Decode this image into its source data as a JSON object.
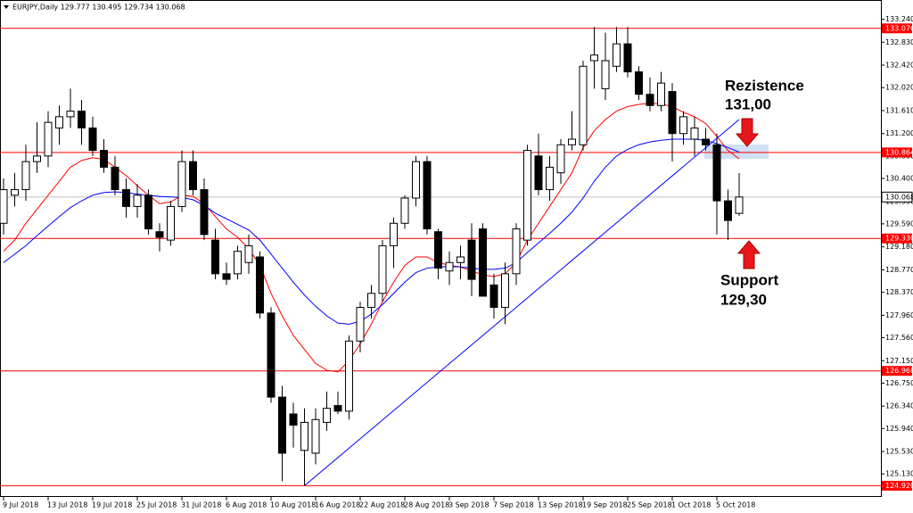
{
  "chart_data": {
    "type": "candlestick",
    "title": "EURJPY,Daily  129.777 130.495 129.734 130.068",
    "categories": [
      "9 Jul 2018",
      null,
      null,
      null,
      "13 Jul 2018",
      null,
      null,
      null,
      "19 Jul 2018",
      null,
      null,
      null,
      "25 Jul 2018",
      null,
      null,
      null,
      "31 Jul 2018",
      null,
      null,
      null,
      "6 Aug 2018",
      null,
      null,
      null,
      "10 Aug 2018",
      null,
      null,
      null,
      "16 Aug 2018",
      null,
      null,
      null,
      "22 Aug 2018",
      null,
      null,
      null,
      "28 Aug 2018",
      null,
      null,
      null,
      "3 Sep 2018",
      null,
      null,
      null,
      "7 Sep 2018",
      null,
      null,
      null,
      "13 Sep 2018",
      null,
      null,
      null,
      "19 Sep 2018",
      null,
      null,
      null,
      "25 Sep 2018",
      null,
      null,
      null,
      "1 Oct 2018",
      null,
      null,
      null,
      "5 Oct 2018",
      null,
      null
    ],
    "open": [
      129.6,
      130.1,
      130.2,
      130.7,
      130.8,
      131.3,
      131.5,
      131.6,
      131.3,
      130.9,
      130.6,
      130.2,
      129.9,
      130.1,
      129.45,
      129.3,
      129.9,
      130.7,
      130.2,
      129.3,
      128.7,
      128.7,
      128.9,
      129.0,
      128.0,
      126.5,
      126.2,
      125.55,
      125.5,
      126.05,
      126.35,
      126.25,
      127.5,
      128.1,
      128.35,
      129.2,
      129.6,
      130.05,
      130.7,
      129.45,
      128.75,
      128.9,
      129.3,
      129.5,
      128.5,
      128.1,
      128.7,
      129.3,
      130.8,
      130.2,
      130.5,
      131.0,
      131.0,
      132.5,
      132.0,
      132.4,
      132.8,
      132.3,
      131.9,
      131.7,
      131.95,
      131.2,
      131.1,
      131.1,
      131.0,
      130.0,
      129.777
    ],
    "high": [
      130.4,
      130.5,
      131.0,
      131.4,
      131.6,
      131.7,
      132.0,
      131.8,
      131.5,
      131.1,
      130.8,
      130.4,
      130.3,
      130.2,
      129.6,
      130.0,
      130.9,
      130.9,
      130.4,
      129.5,
      128.9,
      129.2,
      129.4,
      129.1,
      128.1,
      126.7,
      126.4,
      126.3,
      126.3,
      126.6,
      126.6,
      127.6,
      128.2,
      128.5,
      129.3,
      129.7,
      130.1,
      130.8,
      130.8,
      129.5,
      129.1,
      129.2,
      129.6,
      129.6,
      128.7,
      128.9,
      129.6,
      131.0,
      131.2,
      130.8,
      131.1,
      131.6,
      132.5,
      133.1,
      133.0,
      133.1,
      133.1,
      132.4,
      132.2,
      132.3,
      132.1,
      131.6,
      131.5,
      131.3,
      131.2,
      130.2,
      130.495
    ],
    "low": [
      129.4,
      129.9,
      130.0,
      130.5,
      130.6,
      131.0,
      131.3,
      131.0,
      130.8,
      130.5,
      130.1,
      129.7,
      129.7,
      129.4,
      129.1,
      129.2,
      129.8,
      130.1,
      129.3,
      128.6,
      128.5,
      128.6,
      128.7,
      127.9,
      126.4,
      125.0,
      125.6,
      124.92,
      125.3,
      125.9,
      126.2,
      126.1,
      127.3,
      127.9,
      128.2,
      128.8,
      129.5,
      129.9,
      129.4,
      128.6,
      128.5,
      128.6,
      128.3,
      128.3,
      127.9,
      127.8,
      128.5,
      129.2,
      130.1,
      130.0,
      130.3,
      130.9,
      130.9,
      132.0,
      131.8,
      132.3,
      132.2,
      131.8,
      131.6,
      131.6,
      130.7,
      131.0,
      130.8,
      130.9,
      129.4,
      129.3,
      129.734
    ],
    "close": [
      130.2,
      130.2,
      130.7,
      130.8,
      131.4,
      131.5,
      131.6,
      131.3,
      130.9,
      130.6,
      130.2,
      129.9,
      130.1,
      129.5,
      129.35,
      129.9,
      130.7,
      130.2,
      129.4,
      128.7,
      128.6,
      129.1,
      129.2,
      128.0,
      126.5,
      125.5,
      126.0,
      126.05,
      126.1,
      126.3,
      126.25,
      127.5,
      128.1,
      128.35,
      129.2,
      129.6,
      130.05,
      130.7,
      129.5,
      128.8,
      128.9,
      129.0,
      128.6,
      128.3,
      128.1,
      128.7,
      129.5,
      130.9,
      130.2,
      130.6,
      131.0,
      131.1,
      132.4,
      132.6,
      132.5,
      132.8,
      132.3,
      131.9,
      131.7,
      132.1,
      131.2,
      131.5,
      131.3,
      131.0,
      130.0,
      129.65,
      130.068
    ],
    "bull_color": "#ffffff",
    "bear_color": "#000000",
    "moving_averages": [
      {
        "color": "#ff0000",
        "values": [
          129.1,
          129.3,
          129.6,
          129.85,
          130.1,
          130.35,
          130.6,
          130.72,
          130.77,
          130.74,
          130.6,
          130.45,
          130.27,
          130.1,
          129.95,
          129.98,
          130.1,
          130.08,
          129.95,
          129.72,
          129.5,
          129.35,
          129.15,
          128.85,
          128.35,
          127.95,
          127.6,
          127.35,
          127.1,
          126.98,
          126.95,
          127.15,
          127.45,
          127.8,
          128.2,
          128.55,
          128.85,
          129.0,
          129.0,
          128.9,
          128.85,
          128.82,
          128.75,
          128.68,
          128.65,
          128.7,
          128.9,
          129.3,
          129.6,
          129.9,
          130.2,
          130.5,
          130.95,
          131.25,
          131.45,
          131.6,
          131.68,
          131.72,
          131.74,
          131.73,
          131.68,
          131.58,
          131.5,
          131.38,
          131.15,
          130.9,
          130.75
        ]
      },
      {
        "color": "#0000ff",
        "values": [
          128.9,
          129.05,
          129.2,
          129.38,
          129.55,
          129.72,
          129.88,
          130.0,
          130.1,
          130.15,
          130.16,
          130.15,
          130.12,
          130.1,
          130.08,
          130.07,
          130.06,
          130.02,
          129.92,
          129.78,
          129.68,
          129.58,
          129.48,
          129.3,
          129.05,
          128.8,
          128.55,
          128.32,
          128.12,
          127.95,
          127.82,
          127.8,
          127.85,
          127.98,
          128.15,
          128.35,
          128.55,
          128.72,
          128.8,
          128.82,
          128.83,
          128.82,
          128.8,
          128.78,
          128.78,
          128.8,
          128.9,
          129.08,
          129.25,
          129.42,
          129.6,
          129.8,
          130.05,
          130.35,
          130.6,
          130.8,
          130.92,
          131.0,
          131.05,
          131.08,
          131.1,
          131.1,
          131.1,
          131.08,
          131.02,
          130.95,
          130.87
        ]
      }
    ],
    "trendline": {
      "color": "#0000ff",
      "x": [
        27,
        66
      ],
      "values": [
        124.92,
        131.45
      ]
    },
    "levels": [
      133.076,
      130.864,
      {
        "value": 129.33,
        "label": "129.330"
      },
      126.968,
      {
        "value": 124.92,
        "label": "124.920"
      }
    ],
    "level_color": "#ff0000",
    "current_price": 130.068,
    "current_price_color": "#c0c0c0",
    "ylim": [
      124.72,
      133.55
    ],
    "yticks": [
      {
        "value": 133.24,
        "label": "133.240"
      },
      {
        "value": 132.83,
        "label": "132.830"
      },
      {
        "value": 132.42,
        "label": "132.420"
      },
      {
        "value": 132.02,
        "label": "132.020"
      },
      {
        "value": 131.61,
        "label": "131.610"
      },
      {
        "value": 131.2,
        "label": "131.200"
      },
      {
        "value": 130.8,
        "label": "130.800"
      },
      {
        "value": 130.4,
        "label": "130.400"
      },
      {
        "value": 129.99,
        "label": "129.990"
      },
      {
        "value": 129.59,
        "label": "129.590"
      },
      {
        "value": 129.18,
        "label": "129.180"
      },
      {
        "value": 128.77,
        "label": "128.770"
      },
      {
        "value": 128.37,
        "label": "128.370"
      },
      {
        "value": 127.96,
        "label": "127.960"
      },
      {
        "value": 127.56,
        "label": "127.560"
      },
      {
        "value": 127.15,
        "label": "127.150"
      },
      {
        "value": 126.75,
        "label": "126.750"
      },
      {
        "value": 126.34,
        "label": "126.340"
      },
      {
        "value": 125.94,
        "label": "125.940"
      },
      {
        "value": 125.53,
        "label": "125.530"
      },
      {
        "value": 125.13,
        "label": "125.130"
      }
    ],
    "annotations": [
      {
        "lines": [
          "Rezistence",
          "131,00"
        ]
      },
      {
        "lines": [
          "Support",
          "129,30"
        ]
      }
    ]
  }
}
